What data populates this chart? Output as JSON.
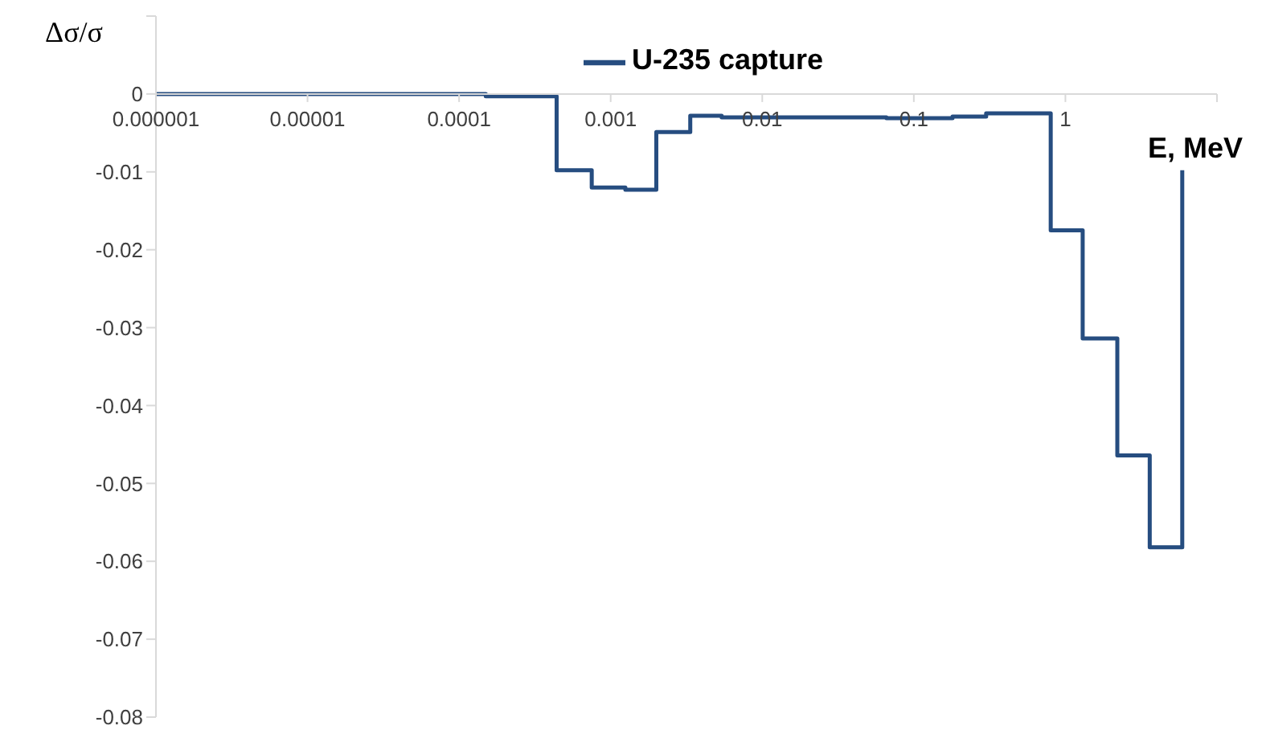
{
  "chart_data": {
    "type": "step",
    "ylabel": "Δσ/σ",
    "xlabel": "E, MeV",
    "log": "x",
    "legend": "top",
    "xlim": [
      1e-06,
      10
    ],
    "xticks": [
      {
        "value": 1e-06,
        "label": "0.000001"
      },
      {
        "value": 1e-05,
        "label": "0.00001"
      },
      {
        "value": 0.0001,
        "label": "0.0001"
      },
      0.001,
      0.01,
      0.1,
      1,
      {
        "value": 10,
        "label": null
      }
    ],
    "ylim": [
      -0.08,
      0.01
    ],
    "yticks": [
      {
        "value": 0.01,
        "label": null
      },
      0,
      -0.01,
      -0.02,
      -0.03,
      -0.04,
      -0.05,
      -0.06,
      -0.07,
      -0.08
    ],
    "series": [
      {
        "name": "U-235 capture",
        "color": "#264d80",
        "x": [
          1e-06,
          0.00015,
          0.00044,
          0.00075,
          0.00125,
          0.002,
          0.00335,
          0.0054,
          0.066,
          0.18,
          0.3,
          0.8,
          1.3,
          2.2,
          3.6,
          5.9
        ],
        "values": [
          0,
          -0.0003,
          -0.0098,
          -0.012,
          -0.0123,
          -0.0049,
          -0.0028,
          -0.003,
          -0.0031,
          -0.0029,
          -0.0025,
          -0.0175,
          -0.0314,
          -0.0464,
          -0.0582,
          -0.0098
        ]
      }
    ]
  }
}
